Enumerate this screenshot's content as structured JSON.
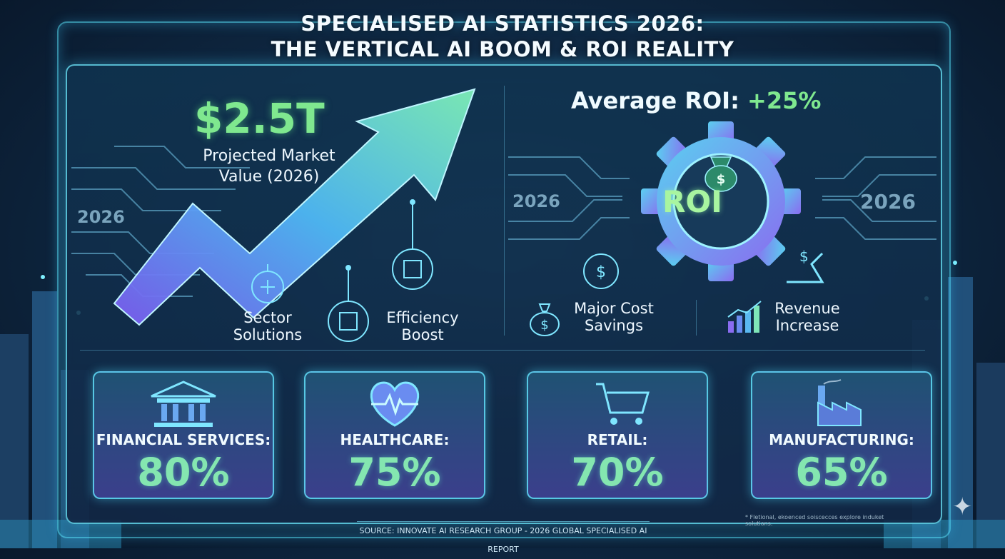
{
  "title": {
    "line1": "Specialised AI Statistics 2026:",
    "line2": "The Vertical AI Boom & ROI Reality"
  },
  "market": {
    "value": "$2.5T",
    "caption": "Projected Market Value (2026)",
    "year_label": "2026",
    "features": {
      "sector": "Sector Solutions",
      "efficiency": "Efficiency Boost"
    }
  },
  "roi": {
    "heading": "Average ROI:",
    "value": "+25%",
    "badge": "ROI",
    "year_left": "2026",
    "year_right": "2026",
    "cost": "Major Cost Savings",
    "revenue": "Revenue Increase"
  },
  "sectors": [
    {
      "label": "Financial Services:",
      "value": "80%",
      "icon": "bank-icon"
    },
    {
      "label": "Healthcare:",
      "value": "75%",
      "icon": "heart-pulse-icon"
    },
    {
      "label": "Retail:",
      "value": "70%",
      "icon": "shopping-cart-icon"
    },
    {
      "label": "Manufacturing:",
      "value": "65%",
      "icon": "factory-icon"
    }
  ],
  "source": "Source: Innovate AI Research Group - 2026 Global Specialised AI Report",
  "footnote": "* Fletional, ekoenced soiscecces explore induket solutions.",
  "colors": {
    "accent_green": "#7fe88f",
    "accent_cyan": "#5ee6ff",
    "accent_purple": "#8a6cf0"
  }
}
